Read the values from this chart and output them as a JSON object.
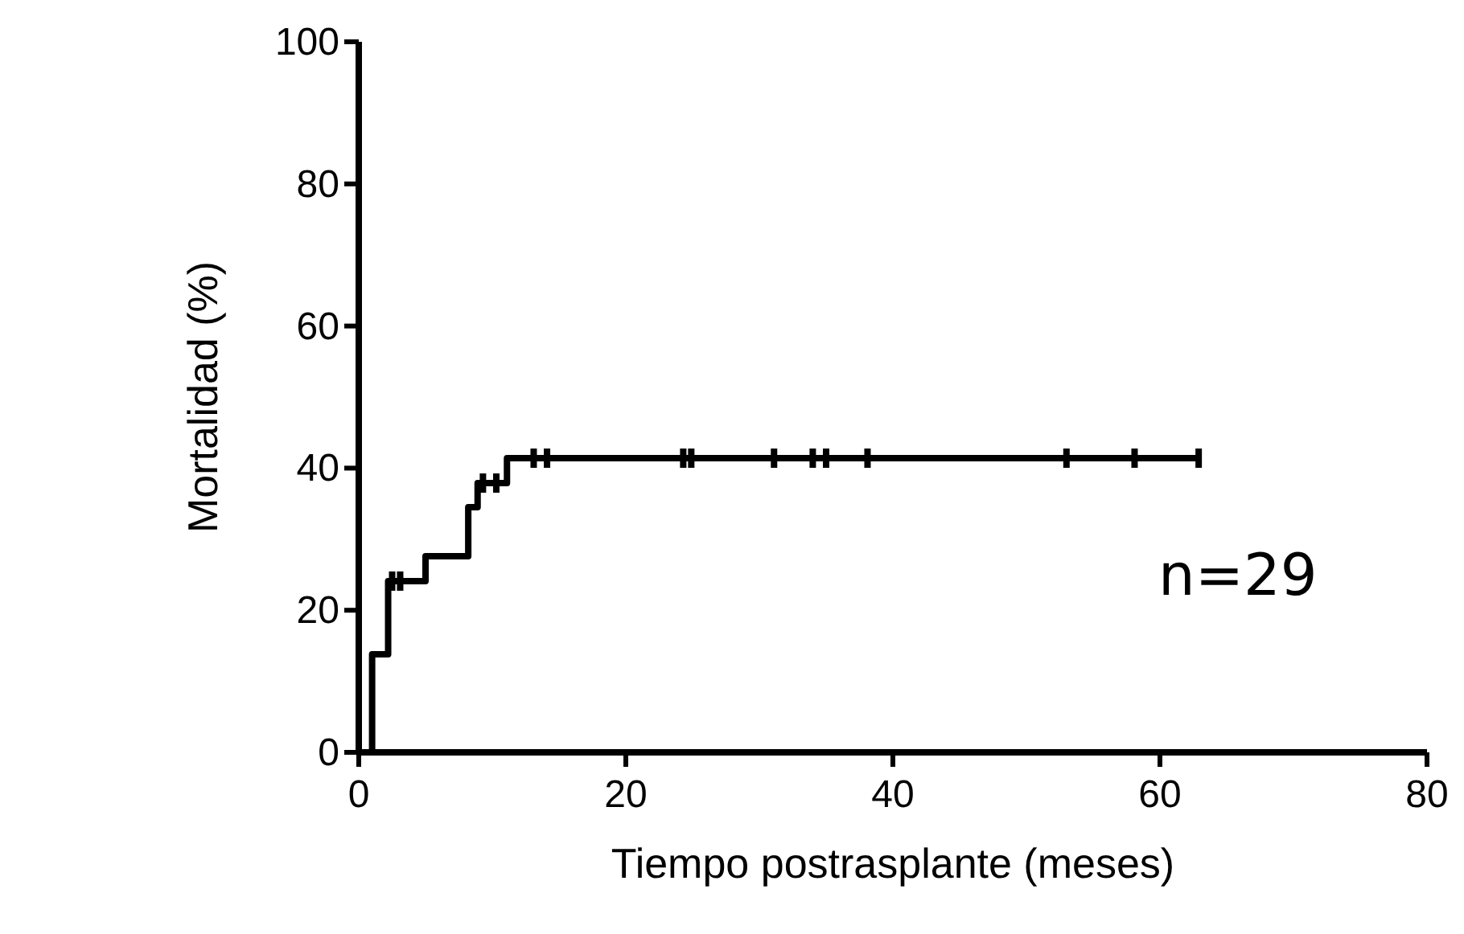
{
  "chart_data": {
    "type": "step",
    "xlabel": "Tiempo postrasplante (meses)",
    "ylabel": "Mortalidad (%)",
    "xlim": [
      0,
      80
    ],
    "ylim": [
      0,
      100
    ],
    "xticks": [
      0,
      20,
      40,
      60,
      80
    ],
    "yticks": [
      0,
      20,
      40,
      60,
      80,
      100
    ],
    "grid": false,
    "annotations": [
      "n=29"
    ],
    "series": [
      {
        "color": "#000000",
        "x": [
          0,
          1,
          2.2,
          5,
          8.2,
          8.9,
          11.1,
          63
        ],
        "values": [
          0,
          13.8,
          24.1,
          27.6,
          34.5,
          37.9,
          41.4,
          41.4
        ]
      },
      {
        "type": "scatter",
        "color": "#000000",
        "x": [
          2.5,
          3.1,
          9.3,
          10.3,
          13.1,
          14.1,
          24.3,
          24.9,
          31.1,
          34.0,
          35.0,
          38.1,
          53.0,
          58.1,
          62.9
        ],
        "values": [
          24.1,
          24.1,
          37.9,
          37.9,
          41.4,
          41.4,
          41.4,
          41.4,
          41.4,
          41.4,
          41.4,
          41.4,
          41.4,
          41.4,
          41.4
        ]
      }
    ]
  }
}
